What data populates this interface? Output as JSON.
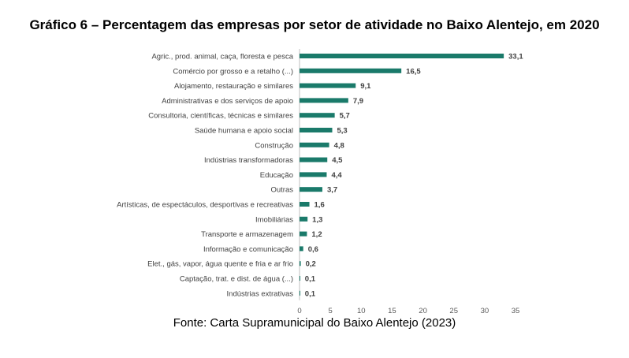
{
  "chart_data": {
    "type": "bar",
    "orientation": "horizontal",
    "title": "Gráfico 6 – Percentagem das empresas por setor de atividade no Baixo Alentejo, em 2020",
    "source": "Fonte: Carta Supramunicipal do Baixo Alentejo (2023)",
    "categories": [
      "Agric., prod. animal, caça, floresta e pesca",
      "Comércio por grosso e a retalho (...)",
      "Alojamento, restauração e similares",
      "Administrativas e dos serviços de apoio",
      "Consultoria, científicas, técnicas e similares",
      "Saúde humana e apoio social",
      "Construção",
      "Indústrias transformadoras",
      "Educação",
      "Outras",
      "Artísticas, de espectáculos, desportivas e recreativas",
      "Imobiliárias",
      "Transporte e armazenagem",
      "Informação e comunicação",
      "Elet., gás, vapor, água quente e fria e ar frio",
      "Captação, trat. e dist. de água (...)",
      "Indústrias extrativas"
    ],
    "values": [
      33.1,
      16.5,
      9.1,
      7.9,
      5.7,
      5.3,
      4.8,
      4.5,
      4.4,
      3.7,
      1.6,
      1.3,
      1.2,
      0.6,
      0.2,
      0.1,
      0.1
    ],
    "value_labels": [
      "33,1",
      "16,5",
      "9,1",
      "7,9",
      "5,7",
      "5,3",
      "4,8",
      "4,5",
      "4,4",
      "3,7",
      "1,6",
      "1,3",
      "1,2",
      "0,6",
      "0,2",
      "0,1",
      "0,1"
    ],
    "xlim": [
      0,
      35
    ],
    "xticks": [
      0,
      5,
      10,
      15,
      20,
      25,
      30,
      35
    ],
    "grid": false,
    "bar_color": "#1a7a6a"
  }
}
